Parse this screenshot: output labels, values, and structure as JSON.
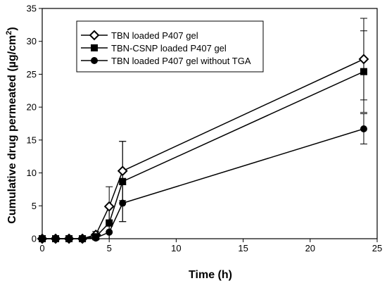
{
  "chart_data": {
    "type": "line",
    "xlabel": "Time (h)",
    "ylabel_main": "Cumulative drug permeated (µg/cm",
    "ylabel_sup": "2",
    "ylabel_close": ")",
    "xlim": [
      0,
      25
    ],
    "ylim": [
      0,
      35
    ],
    "x_ticks": [
      0,
      5,
      10,
      15,
      20,
      25
    ],
    "y_ticks": [
      0,
      5,
      10,
      15,
      20,
      25,
      30,
      35
    ],
    "x_tick_labels": [
      "0",
      "5",
      "10",
      "15",
      "20",
      "25"
    ],
    "y_tick_labels": [
      "0",
      "5",
      "10",
      "15",
      "20",
      "25",
      "30",
      "35"
    ],
    "grid": false,
    "legend_position": "top-left",
    "series": [
      {
        "name": "TBN loaded P407 gel",
        "marker": "diamond-open",
        "x": [
          0,
          1,
          2,
          3,
          4,
          5,
          6,
          24
        ],
        "y": [
          0,
          0,
          0,
          0,
          0.6,
          4.9,
          10.3,
          27.3
        ],
        "err": [
          0,
          0,
          0,
          0,
          0.5,
          3.0,
          4.5,
          6.2
        ]
      },
      {
        "name": "TBN-CSNP loaded P407 gel",
        "marker": "square-filled",
        "x": [
          0,
          1,
          2,
          3,
          4,
          5,
          6,
          24
        ],
        "y": [
          0,
          0,
          0,
          0,
          0.3,
          2.4,
          8.7,
          25.4
        ],
        "err": [
          0,
          0,
          0,
          0,
          0.4,
          2.4,
          6.1,
          6.2
        ]
      },
      {
        "name": "TBN loaded P407 gel without TGA",
        "marker": "circle-filled",
        "x": [
          0,
          1,
          2,
          3,
          4,
          5,
          6,
          24
        ],
        "y": [
          0,
          0,
          0,
          0,
          0.1,
          1.0,
          5.4,
          16.7
        ],
        "err": [
          0,
          0,
          0,
          0,
          0.2,
          1.0,
          2.8,
          2.3
        ]
      }
    ],
    "colors": {
      "axis": "#000000",
      "line": "#000000",
      "marker_fill_dark": "#000000",
      "marker_fill_light": "#ffffff"
    }
  }
}
